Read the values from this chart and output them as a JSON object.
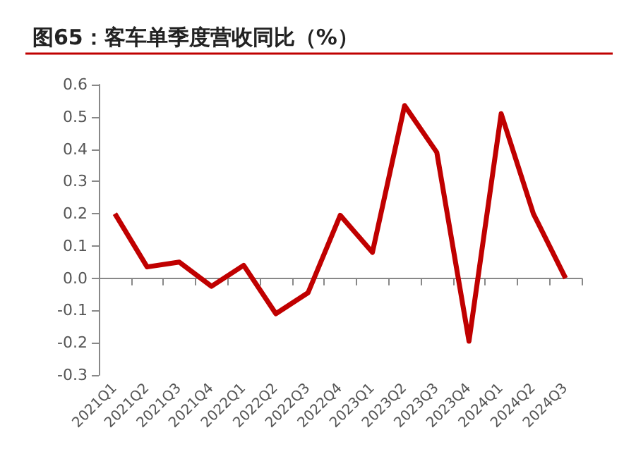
{
  "chart_data": {
    "type": "line",
    "title": "图65：客车单季度营收同比（%）",
    "categories": [
      "2021Q1",
      "2021Q2",
      "2021Q3",
      "2021Q4",
      "2022Q1",
      "2022Q2",
      "2022Q3",
      "2022Q4",
      "2023Q1",
      "2023Q2",
      "2023Q3",
      "2023Q4",
      "2024Q1",
      "2024Q2",
      "2024Q3"
    ],
    "series": [
      {
        "color": "#c00000",
        "values": [
          0.2,
          0.035,
          0.05,
          -0.025,
          0.04,
          -0.11,
          -0.045,
          0.195,
          0.08,
          0.535,
          0.39,
          -0.195,
          0.51,
          0.2,
          0.0
        ]
      }
    ],
    "ylim": [
      -0.3,
      0.6
    ],
    "yticks": [
      {
        "value": -0.3,
        "label": "-0.3"
      },
      {
        "value": -0.2,
        "label": "-0.2"
      },
      {
        "value": -0.1,
        "label": "-0.1"
      },
      {
        "value": 0,
        "label": "0.0"
      },
      {
        "value": 0.1,
        "label": "0.1"
      },
      {
        "value": 0.2,
        "label": "0.2"
      },
      {
        "value": 0.3,
        "label": "0.3"
      },
      {
        "value": 0.4,
        "label": "0.4"
      },
      {
        "value": 0.5,
        "label": "0.5"
      },
      {
        "value": 0.6,
        "label": "0.6"
      }
    ],
    "marker": "none",
    "line_style": "solid"
  }
}
